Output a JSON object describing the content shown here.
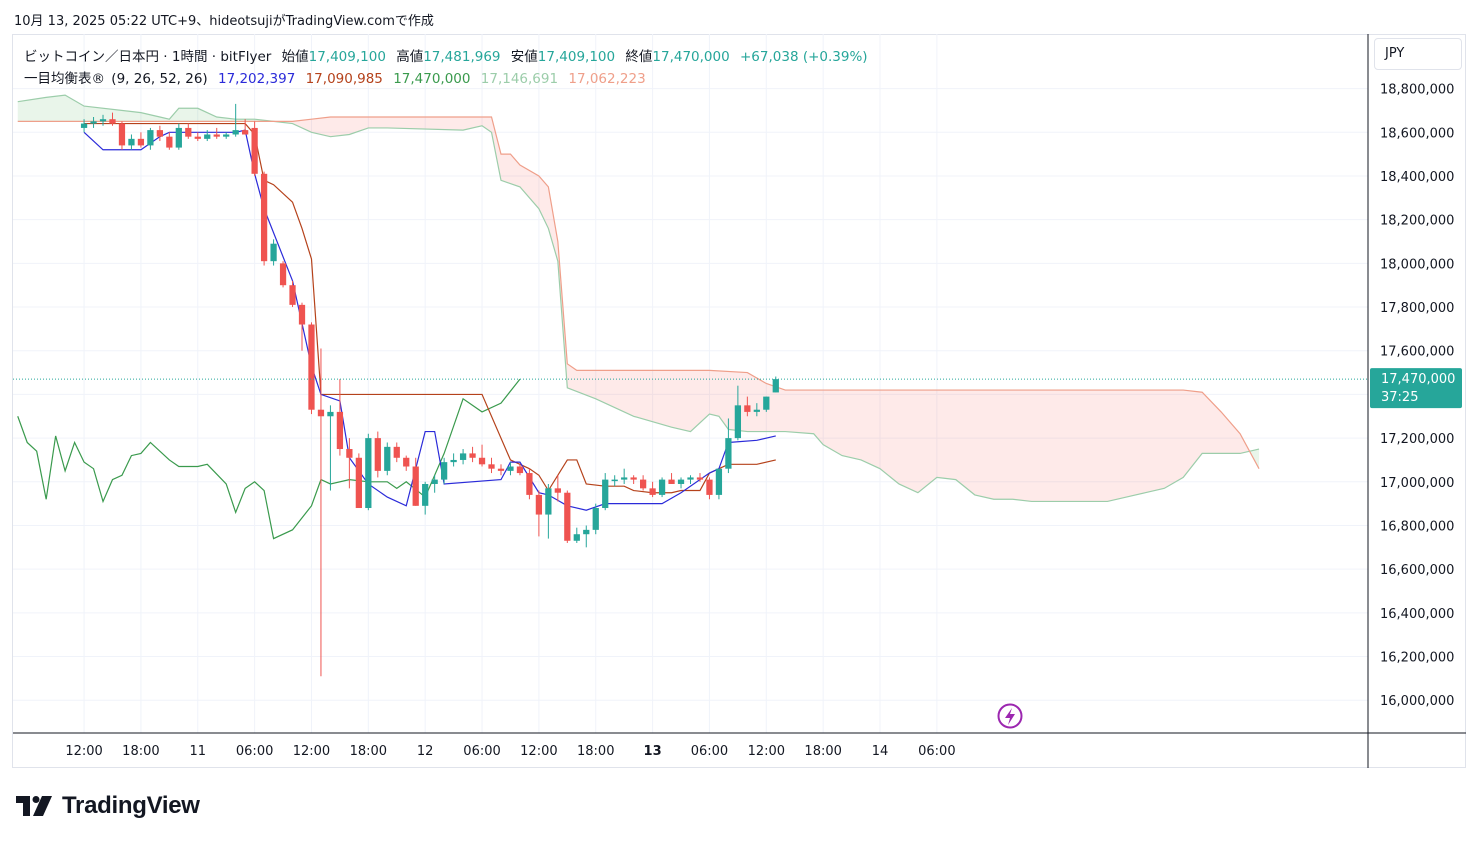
{
  "header": {
    "text": "10月 13, 2025 05:22 UTC+9、hideotsujiがTradingView.comで作成"
  },
  "legend": {
    "symbol": "ビットコイン／日本円 · 1時間 · bitFlyer",
    "open_label": "始値",
    "open": "17,409,100",
    "high_label": "高値",
    "high": "17,481,969",
    "low_label": "安値",
    "low": "17,409,100",
    "close_label": "終値",
    "close": "17,470,000",
    "change": "+67,038 (+0.39%)",
    "indicator_name": "一目均衡表®",
    "indicator_params": "(9, 26, 52, 26)",
    "indicator_values": [
      {
        "value": "17,202,397",
        "color": "#2b2bd9"
      },
      {
        "value": "17,090,985",
        "color": "#b5421b"
      },
      {
        "value": "17,470,000",
        "color": "#3a9a4d"
      },
      {
        "value": "17,146,691",
        "color": "#9ccdaa"
      },
      {
        "value": "17,062,223",
        "color": "#ef9f8a"
      }
    ]
  },
  "currency": "JPY",
  "price_label": {
    "price": "17,470,000",
    "countdown": "37:25",
    "color": "#26a69a"
  },
  "brand": {
    "name": "TradingView",
    "logo_icon": "tradingview-logo-icon"
  },
  "chart_data": {
    "type": "candlestick",
    "interval": "1h",
    "y_range": [
      15850000,
      19050000
    ],
    "x_range_hours_from_first_bar": [
      -7.5,
      135.5
    ],
    "y_ticks": [
      16000000,
      16200000,
      16400000,
      16600000,
      16800000,
      17000000,
      17200000,
      17400000,
      17600000,
      17800000,
      18000000,
      18200000,
      18400000,
      18600000,
      18800000
    ],
    "y_tick_labels": [
      "16,000,000",
      "16,200,000",
      "16,400,000",
      "16,600,000",
      "16,800,000",
      "17,000,000",
      "17,200,000",
      "17,400,000",
      "17,600,000",
      "17,800,000",
      "18,000,000",
      "18,200,000",
      "18,400,000",
      "18,600,000",
      "18,800,000"
    ],
    "x_ticks": [
      {
        "label": "12:00",
        "bold": false
      },
      {
        "label": "18:00",
        "bold": false
      },
      {
        "label": "11",
        "bold": false
      },
      {
        "label": "06:00",
        "bold": false
      },
      {
        "label": "12:00",
        "bold": false
      },
      {
        "label": "18:00",
        "bold": false
      },
      {
        "label": "12",
        "bold": false
      },
      {
        "label": "06:00",
        "bold": false
      },
      {
        "label": "12:00",
        "bold": false
      },
      {
        "label": "18:00",
        "bold": false
      },
      {
        "label": "13",
        "bold": true
      },
      {
        "label": "06:00",
        "bold": false
      },
      {
        "label": "12:00",
        "bold": false
      },
      {
        "label": "18:00",
        "bold": false
      },
      {
        "label": "14",
        "bold": false
      },
      {
        "label": "06:00",
        "bold": false
      }
    ],
    "x_tick_hours": [
      0,
      6,
      12,
      18,
      24,
      30,
      36,
      42,
      48,
      54,
      60,
      66,
      72,
      78,
      84,
      90
    ],
    "candles": [
      [
        18620000,
        18660000,
        18600000,
        18640000
      ],
      [
        18640000,
        18670000,
        18620000,
        18650000
      ],
      [
        18650000,
        18680000,
        18630000,
        18660000
      ],
      [
        18660000,
        18690000,
        18630000,
        18640000
      ],
      [
        18640000,
        18650000,
        18520000,
        18540000
      ],
      [
        18540000,
        18590000,
        18520000,
        18570000
      ],
      [
        18570000,
        18600000,
        18530000,
        18540000
      ],
      [
        18540000,
        18620000,
        18520000,
        18610000
      ],
      [
        18610000,
        18630000,
        18560000,
        18580000
      ],
      [
        18580000,
        18600000,
        18520000,
        18530000
      ],
      [
        18530000,
        18640000,
        18520000,
        18620000
      ],
      [
        18620000,
        18640000,
        18570000,
        18580000
      ],
      [
        18580000,
        18600000,
        18560000,
        18570000
      ],
      [
        18570000,
        18610000,
        18560000,
        18590000
      ],
      [
        18590000,
        18620000,
        18570000,
        18580000
      ],
      [
        18580000,
        18600000,
        18570000,
        18590000
      ],
      [
        18590000,
        18730000,
        18580000,
        18610000
      ],
      [
        18610000,
        18660000,
        18590000,
        18590000
      ],
      [
        18620000,
        18650000,
        18400000,
        18410000
      ],
      [
        18410000,
        18420000,
        17990000,
        18010000
      ],
      [
        18010000,
        18110000,
        17990000,
        18090000
      ],
      [
        18000000,
        18010000,
        17890000,
        17900000
      ],
      [
        17900000,
        17920000,
        17800000,
        17810000
      ],
      [
        17810000,
        17820000,
        17600000,
        17720000
      ],
      [
        17720000,
        17730000,
        17310000,
        17330000
      ],
      [
        17330000,
        17610000,
        16110000,
        17300000
      ],
      [
        17300000,
        17350000,
        16960000,
        17320000
      ],
      [
        17320000,
        17470000,
        17120000,
        17150000
      ],
      [
        17150000,
        17200000,
        16970000,
        17110000
      ],
      [
        17110000,
        17130000,
        16890000,
        16880000
      ],
      [
        16880000,
        17220000,
        16870000,
        17200000
      ],
      [
        17200000,
        17230000,
        17020000,
        17050000
      ],
      [
        17050000,
        17180000,
        17030000,
        17160000
      ],
      [
        17160000,
        17180000,
        17090000,
        17110000
      ],
      [
        17110000,
        17120000,
        17050000,
        17070000
      ],
      [
        17070000,
        17110000,
        16890000,
        16890000
      ],
      [
        16890000,
        17000000,
        16850000,
        16990000
      ],
      [
        16990000,
        17030000,
        16950000,
        17010000
      ],
      [
        17010000,
        17110000,
        16990000,
        17090000
      ],
      [
        17090000,
        17130000,
        17070000,
        17100000
      ],
      [
        17100000,
        17150000,
        17080000,
        17130000
      ],
      [
        17130000,
        17160000,
        17090000,
        17110000
      ],
      [
        17110000,
        17170000,
        17070000,
        17080000
      ],
      [
        17080000,
        17110000,
        17040000,
        17060000
      ],
      [
        17060000,
        17080000,
        17030000,
        17050000
      ],
      [
        17050000,
        17090000,
        17030000,
        17070000
      ],
      [
        17070000,
        17080000,
        17030000,
        17040000
      ],
      [
        17040000,
        17060000,
        16920000,
        16940000
      ],
      [
        16940000,
        16960000,
        16750000,
        16850000
      ],
      [
        16850000,
        16990000,
        16740000,
        16970000
      ],
      [
        16970000,
        17030000,
        16910000,
        16950000
      ],
      [
        16950000,
        16960000,
        16720000,
        16730000
      ],
      [
        16730000,
        16790000,
        16720000,
        16760000
      ],
      [
        16760000,
        16800000,
        16700000,
        16780000
      ],
      [
        16780000,
        16900000,
        16760000,
        16880000
      ],
      [
        16880000,
        17040000,
        16870000,
        17010000
      ],
      [
        17010000,
        17030000,
        16980000,
        17010000
      ],
      [
        17010000,
        17060000,
        16990000,
        17020000
      ],
      [
        17020000,
        17030000,
        16990000,
        17010000
      ],
      [
        17010000,
        17030000,
        16960000,
        16970000
      ],
      [
        16970000,
        17000000,
        16930000,
        16940000
      ],
      [
        16940000,
        17020000,
        16930000,
        17010000
      ],
      [
        17010000,
        17040000,
        16990000,
        16990000
      ],
      [
        16990000,
        17020000,
        16970000,
        17010000
      ],
      [
        17010000,
        17030000,
        16990000,
        17020000
      ],
      [
        17020000,
        17040000,
        17000000,
        17010000
      ],
      [
        17010000,
        17020000,
        16920000,
        16940000
      ],
      [
        16940000,
        17060000,
        16920000,
        17060000
      ],
      [
        17060000,
        17290000,
        17040000,
        17200000
      ],
      [
        17200000,
        17440000,
        17190000,
        17350000
      ],
      [
        17350000,
        17390000,
        17300000,
        17320000
      ],
      [
        17320000,
        17360000,
        17300000,
        17330000
      ],
      [
        17330000,
        17390000,
        17320000,
        17390000
      ],
      [
        17409100,
        17481969,
        17409100,
        17470000
      ]
    ],
    "tenkan_color": "#2b2bd9",
    "kijun_color": "#b5421b",
    "chikou_color": "#3a9a4d",
    "span_a_color": "#9ccdaa",
    "span_b_color": "#ef9f8a",
    "up_color": "#26a69a",
    "down_color": "#ef5350",
    "tenkan": [
      [
        0,
        18600000
      ],
      [
        2,
        18520000
      ],
      [
        6,
        18520000
      ],
      [
        8,
        18580000
      ],
      [
        9,
        18600000
      ],
      [
        16,
        18600000
      ],
      [
        17,
        18610000
      ],
      [
        18,
        18410000
      ],
      [
        19,
        18250000
      ],
      [
        22,
        17920000
      ],
      [
        24,
        17530000
      ],
      [
        25,
        17400000
      ],
      [
        27,
        17370000
      ],
      [
        28,
        17110000
      ],
      [
        30,
        16990000
      ],
      [
        32,
        16930000
      ],
      [
        34,
        16890000
      ],
      [
        36,
        17230000
      ],
      [
        37,
        17230000
      ],
      [
        38,
        16990000
      ],
      [
        44,
        17010000
      ],
      [
        45,
        17090000
      ],
      [
        46,
        17090000
      ],
      [
        48,
        16950000
      ],
      [
        49,
        16940000
      ],
      [
        51,
        16890000
      ],
      [
        53,
        16870000
      ],
      [
        55,
        16900000
      ],
      [
        61,
        16900000
      ],
      [
        63,
        16950000
      ],
      [
        66,
        17040000
      ],
      [
        67,
        17060000
      ],
      [
        68,
        17180000
      ],
      [
        71,
        17190000
      ],
      [
        73,
        17210000
      ]
    ],
    "kijun": [
      [
        0,
        18640000
      ],
      [
        17,
        18640000
      ],
      [
        18,
        18590000
      ],
      [
        19,
        18380000
      ],
      [
        20,
        18360000
      ],
      [
        22,
        18280000
      ],
      [
        23,
        18160000
      ],
      [
        24,
        18020000
      ],
      [
        25,
        17400000
      ],
      [
        42,
        17400000
      ],
      [
        45,
        17100000
      ],
      [
        47,
        17060000
      ],
      [
        48,
        17030000
      ],
      [
        49,
        16960000
      ],
      [
        51,
        17100000
      ],
      [
        52,
        17100000
      ],
      [
        53,
        16990000
      ],
      [
        55,
        16980000
      ],
      [
        57,
        16980000
      ],
      [
        58,
        16960000
      ],
      [
        60,
        16950000
      ],
      [
        62,
        16950000
      ],
      [
        63,
        16960000
      ],
      [
        65,
        16960000
      ],
      [
        66,
        17040000
      ],
      [
        67,
        17060000
      ],
      [
        68,
        17080000
      ],
      [
        71,
        17080000
      ],
      [
        73,
        17100000
      ]
    ],
    "chikou": [
      [
        -7,
        17300000
      ],
      [
        -6,
        17180000
      ],
      [
        -5,
        17140000
      ],
      [
        -4,
        16920000
      ],
      [
        -3,
        17210000
      ],
      [
        -2,
        17050000
      ],
      [
        -1,
        17180000
      ],
      [
        0,
        17090000
      ],
      [
        1,
        17060000
      ],
      [
        2,
        16910000
      ],
      [
        3,
        17010000
      ],
      [
        4,
        17030000
      ],
      [
        5,
        17120000
      ],
      [
        6,
        17130000
      ],
      [
        7,
        17180000
      ],
      [
        9,
        17100000
      ],
      [
        10,
        17070000
      ],
      [
        12,
        17070000
      ],
      [
        13,
        17080000
      ],
      [
        15,
        16990000
      ],
      [
        16,
        16860000
      ],
      [
        17,
        16970000
      ],
      [
        18,
        17000000
      ],
      [
        19,
        16960000
      ],
      [
        20,
        16740000
      ],
      [
        22,
        16780000
      ],
      [
        24,
        16890000
      ],
      [
        25,
        17010000
      ],
      [
        26,
        16990000
      ],
      [
        28,
        17010000
      ],
      [
        30,
        17000000
      ],
      [
        32,
        17000000
      ],
      [
        33,
        16970000
      ],
      [
        34,
        17000000
      ],
      [
        36,
        16930000
      ],
      [
        38,
        17130000
      ],
      [
        40,
        17380000
      ],
      [
        42,
        17320000
      ],
      [
        44,
        17360000
      ],
      [
        46,
        17470000
      ]
    ],
    "span_a": [
      [
        -7,
        18740000
      ],
      [
        -4,
        18760000
      ],
      [
        -2,
        18770000
      ],
      [
        0,
        18720000
      ],
      [
        6,
        18690000
      ],
      [
        8,
        18670000
      ],
      [
        9,
        18660000
      ],
      [
        10,
        18710000
      ],
      [
        12,
        18710000
      ],
      [
        14,
        18670000
      ],
      [
        16,
        18660000
      ],
      [
        18,
        18660000
      ],
      [
        20,
        18650000
      ],
      [
        22,
        18640000
      ],
      [
        24,
        18600000
      ],
      [
        26,
        18580000
      ],
      [
        28,
        18590000
      ],
      [
        30,
        18620000
      ],
      [
        32,
        18620000
      ],
      [
        40,
        18610000
      ],
      [
        42,
        18630000
      ],
      [
        43,
        18600000
      ],
      [
        44,
        18380000
      ],
      [
        46,
        18350000
      ],
      [
        48,
        18250000
      ],
      [
        49,
        18160000
      ],
      [
        50,
        18010000
      ],
      [
        51,
        17430000
      ],
      [
        54,
        17380000
      ],
      [
        58,
        17300000
      ],
      [
        62,
        17250000
      ],
      [
        64,
        17230000
      ],
      [
        66,
        17310000
      ],
      [
        67,
        17300000
      ],
      [
        68,
        17240000
      ],
      [
        70,
        17230000
      ],
      [
        74,
        17230000
      ],
      [
        77,
        17220000
      ],
      [
        78,
        17170000
      ],
      [
        80,
        17120000
      ],
      [
        82,
        17100000
      ],
      [
        84,
        17060000
      ],
      [
        86,
        16990000
      ],
      [
        88,
        16950000
      ],
      [
        90,
        17020000
      ],
      [
        92,
        17010000
      ],
      [
        94,
        16940000
      ],
      [
        96,
        16920000
      ],
      [
        98,
        16920000
      ],
      [
        100,
        16910000
      ],
      [
        104,
        16910000
      ],
      [
        108,
        16910000
      ],
      [
        110,
        16930000
      ],
      [
        112,
        16950000
      ],
      [
        114,
        16970000
      ],
      [
        116,
        17020000
      ],
      [
        118,
        17130000
      ],
      [
        122,
        17130000
      ],
      [
        124,
        17150000
      ]
    ],
    "span_b": [
      [
        -7,
        18650000
      ],
      [
        22,
        18650000
      ],
      [
        24,
        18660000
      ],
      [
        26,
        18670000
      ],
      [
        28,
        18670000
      ],
      [
        30,
        18670000
      ],
      [
        42,
        18670000
      ],
      [
        43,
        18670000
      ],
      [
        44,
        18500000
      ],
      [
        45,
        18500000
      ],
      [
        46,
        18450000
      ],
      [
        48,
        18400000
      ],
      [
        49,
        18350000
      ],
      [
        50,
        18100000
      ],
      [
        51,
        17540000
      ],
      [
        52,
        17510000
      ],
      [
        54,
        17510000
      ],
      [
        64,
        17510000
      ],
      [
        66,
        17510000
      ],
      [
        70,
        17500000
      ],
      [
        72,
        17450000
      ],
      [
        74,
        17420000
      ],
      [
        76,
        17420000
      ],
      [
        78,
        17420000
      ],
      [
        80,
        17420000
      ],
      [
        90,
        17420000
      ],
      [
        100,
        17420000
      ],
      [
        110,
        17420000
      ],
      [
        116,
        17420000
      ],
      [
        118,
        17410000
      ],
      [
        120,
        17320000
      ],
      [
        122,
        17220000
      ],
      [
        124,
        17060000
      ]
    ]
  }
}
